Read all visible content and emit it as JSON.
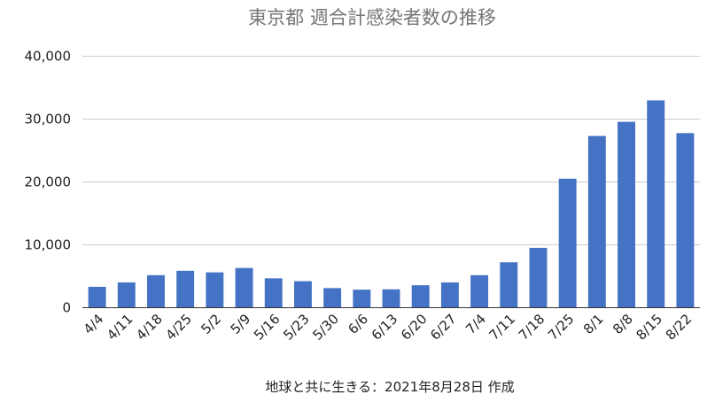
{
  "chart_data": {
    "type": "bar",
    "title": "東京都 週合計感染者数の推移",
    "xlabel": "地球と共に生きる：2021年8月28日 作成",
    "ylabel": "",
    "ylim": [
      0,
      40000
    ],
    "y_ticks": [
      "0",
      "10,000",
      "20,000",
      "30,000",
      "40,000"
    ],
    "y_tick_values": [
      0,
      10000,
      20000,
      30000,
      40000
    ],
    "grid": true,
    "legend": "none",
    "color": "#4472c4",
    "categories": [
      "4/4",
      "4/11",
      "4/18",
      "4/25",
      "5/2",
      "5/9",
      "5/16",
      "5/23",
      "5/30",
      "6/6",
      "6/13",
      "6/20",
      "6/27",
      "7/4",
      "7/11",
      "7/18",
      "7/25",
      "8/1",
      "8/8",
      "8/15",
      "8/22"
    ],
    "values": [
      3250,
      3950,
      5100,
      5800,
      5550,
      6250,
      4600,
      4150,
      3050,
      2800,
      2850,
      3500,
      3950,
      5100,
      7150,
      9450,
      20450,
      27250,
      29500,
      32900,
      27700
    ]
  }
}
